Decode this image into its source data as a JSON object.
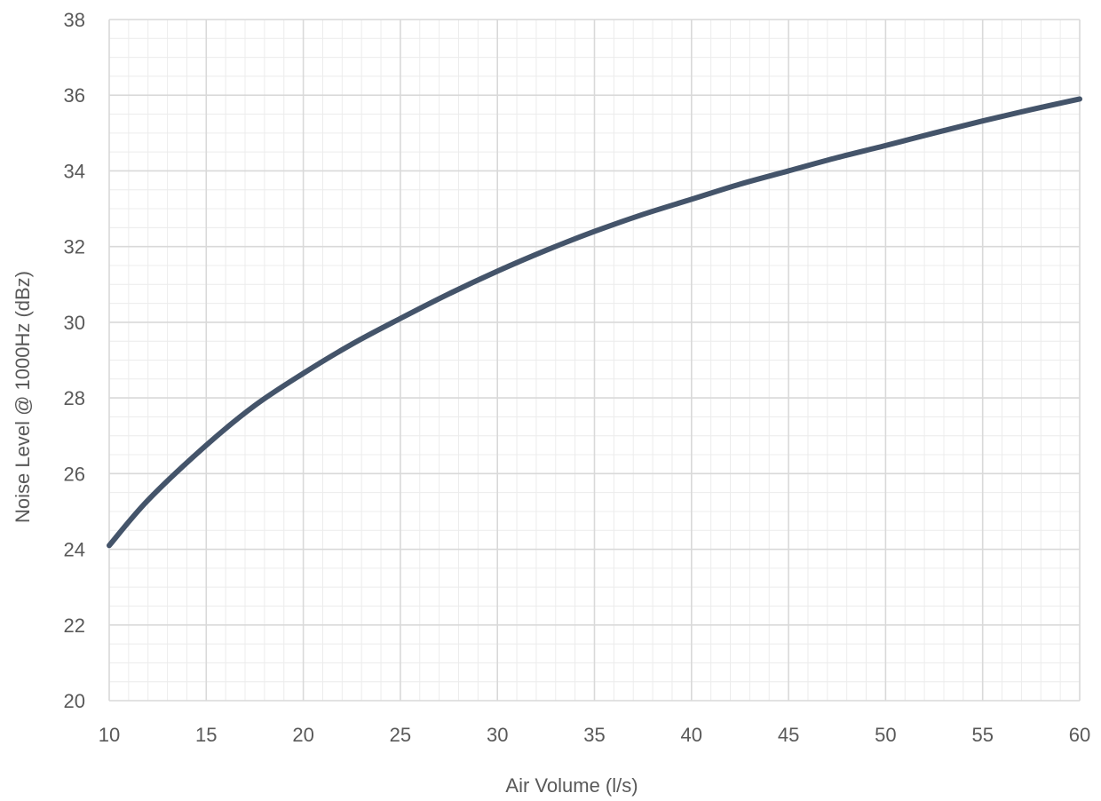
{
  "chart_data": {
    "type": "line",
    "title": "",
    "xlabel": "Air Volume (l/s)",
    "ylabel": "Noise Level  @ 1000Hz (dBz)",
    "xlim": [
      10,
      60
    ],
    "ylim": [
      20,
      38
    ],
    "x_ticks": [
      10,
      15,
      20,
      25,
      30,
      35,
      40,
      45,
      50,
      55,
      60
    ],
    "y_ticks": [
      20,
      22,
      24,
      26,
      28,
      30,
      32,
      34,
      36,
      38
    ],
    "x_minor_step": 1,
    "y_minor_step": 0.5,
    "grid": true,
    "legend": "none",
    "series": [
      {
        "color": "#44546A",
        "x": [
          10,
          12,
          15,
          17.5,
          20,
          22.5,
          25,
          27.5,
          30,
          32.5,
          35,
          37.5,
          40,
          42.5,
          45,
          47.5,
          50,
          52.5,
          55,
          57.5,
          60
        ],
        "y": [
          24.1,
          25.3,
          26.75,
          27.8,
          28.65,
          29.42,
          30.1,
          30.75,
          31.35,
          31.9,
          32.4,
          32.85,
          33.25,
          33.65,
          34.0,
          34.35,
          34.67,
          35.0,
          35.32,
          35.62,
          35.9
        ]
      }
    ]
  }
}
